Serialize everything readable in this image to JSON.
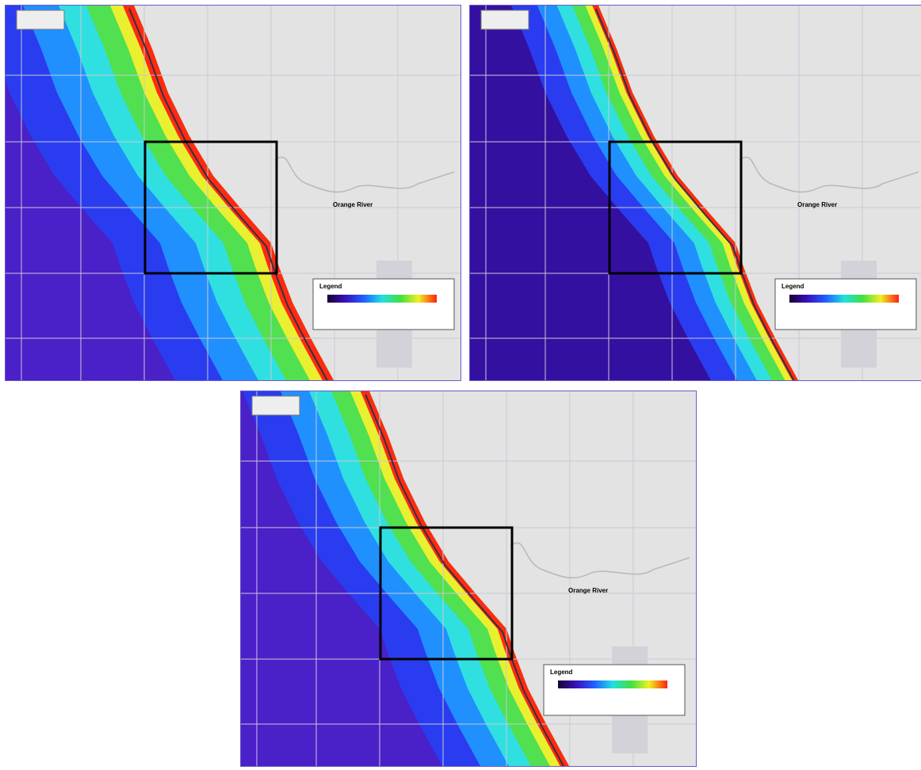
{
  "panels": [
    {
      "legend_title": "Legend",
      "river_label": "Orange River"
    },
    {
      "legend_title": "Legend",
      "river_label": "Orange River"
    },
    {
      "legend_title": "Legend",
      "river_label": "Orange River"
    }
  ]
}
